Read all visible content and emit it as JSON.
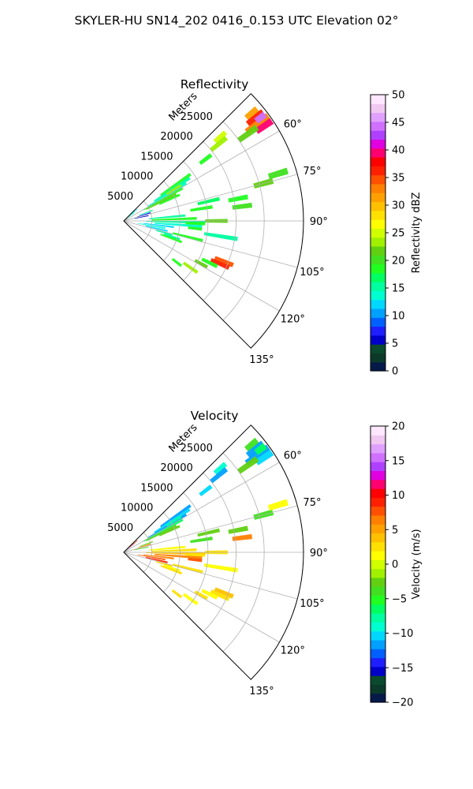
{
  "figure": {
    "suptitle": "SKYLER-HU  SN14_202  0416_0.153 UTC Elevation 02°"
  },
  "chart_data": [
    {
      "type": "heatmap",
      "projection": "polar-sector",
      "title": "Reflectivity",
      "range_label": "Meters",
      "range_ticks": [
        5000,
        10000,
        15000,
        20000,
        25000
      ],
      "range_tick_labels": [
        "5000",
        "10000",
        "15000",
        "20000",
        "25000"
      ],
      "rmax": 32000,
      "azimuth_range": [
        45,
        135
      ],
      "azimuth_ticks": [
        60,
        75,
        90,
        105,
        120,
        135
      ],
      "azimuth_tick_labels": [
        "60°",
        "75°",
        "90°",
        "105°",
        "120°",
        "135°"
      ],
      "grid": true,
      "colorbar": {
        "label": "Reflectivity dBZ",
        "vmin": 0,
        "vmax": 50,
        "ticks": [
          0,
          5,
          10,
          15,
          20,
          25,
          30,
          35,
          40,
          45,
          50
        ],
        "tick_labels": [
          "0",
          "5",
          "10",
          "15",
          "20",
          "25",
          "30",
          "35",
          "40",
          "45",
          "50"
        ],
        "colors": [
          "#061a4a",
          "#0c3a2a",
          "#0a4a2e",
          "#0000c8",
          "#1e1eff",
          "#0060ff",
          "#00a0ff",
          "#00d8ff",
          "#00ffd0",
          "#00ffa0",
          "#00ff60",
          "#20ff20",
          "#40e020",
          "#60d010",
          "#a0f000",
          "#d0ff00",
          "#ffff00",
          "#ffe000",
          "#ffc000",
          "#ffa000",
          "#ff8000",
          "#ff5000",
          "#ff2000",
          "#ff0000",
          "#ff0070",
          "#e000e0",
          "#b040ff",
          "#d070ff",
          "#e0a0ff",
          "#f0c8f0",
          "#ffe8ff"
        ]
      },
      "cells": [
        {
          "az": 47,
          "r": [
            0,
            2600
          ],
          "v": 14
        },
        {
          "az": 49,
          "r": [
            0,
            3200
          ],
          "v": 12
        },
        {
          "az": 52,
          "r": [
            200,
            2400
          ],
          "v": 16
        },
        {
          "az": 50,
          "r": [
            28500,
            31000
          ],
          "v": 31
        },
        {
          "az": 52,
          "r": [
            28000,
            31500
          ],
          "v": 36
        },
        {
          "az": 54,
          "r": [
            27000,
            31800
          ],
          "v": 33
        },
        {
          "az": 56,
          "r": [
            28500,
            31800
          ],
          "v": 40
        },
        {
          "az": 53,
          "r": [
            29500,
            31500
          ],
          "v": 44
        },
        {
          "az": 55,
          "r": [
            25000,
            29000
          ],
          "v": 21
        },
        {
          "az": 49,
          "r": [
            21500,
            24000
          ],
          "v": 25
        },
        {
          "az": 51,
          "r": [
            20000,
            23500
          ],
          "v": 23
        },
        {
          "az": 53,
          "r": [
            17000,
            19500
          ],
          "v": 19
        },
        {
          "az": 55,
          "r": [
            8000,
            14500
          ],
          "v": 19
        },
        {
          "az": 57,
          "r": [
            6500,
            14000
          ],
          "v": 16
        },
        {
          "az": 59,
          "r": [
            5000,
            13000
          ],
          "v": 14
        },
        {
          "az": 61,
          "r": [
            4000,
            12000
          ],
          "v": 18
        },
        {
          "az": 63,
          "r": [
            4500,
            10500
          ],
          "v": 22
        },
        {
          "az": 65,
          "r": [
            7000,
            11000
          ],
          "v": 19
        },
        {
          "az": 58,
          "r": [
            9000,
            12000
          ],
          "v": 24
        },
        {
          "az": 70,
          "r": [
            3000,
            5500
          ],
          "v": 16
        },
        {
          "az": 73,
          "r": [
            2500,
            5000
          ],
          "v": 8
        },
        {
          "az": 76,
          "r": [
            500,
            2500
          ],
          "v": 11
        },
        {
          "az": 78,
          "r": [
            2000,
            4500
          ],
          "v": 5
        },
        {
          "az": 77,
          "r": [
            13500,
            17500
          ],
          "v": 17
        },
        {
          "az": 81,
          "r": [
            12000,
            16000
          ],
          "v": 19
        },
        {
          "az": 79,
          "r": [
            19000,
            22500
          ],
          "v": 18
        },
        {
          "az": 83,
          "r": [
            19500,
            23000
          ],
          "v": 20
        },
        {
          "az": 75,
          "r": [
            24000,
            27500
          ],
          "v": 21
        },
        {
          "az": 73,
          "r": [
            27000,
            30500
          ],
          "v": 20
        },
        {
          "az": 85,
          "r": [
            4500,
            11000
          ],
          "v": 16
        },
        {
          "az": 88,
          "r": [
            5000,
            13000
          ],
          "v": 18
        },
        {
          "az": 91,
          "r": [
            4000,
            14500
          ],
          "v": 15
        },
        {
          "az": 94,
          "r": [
            5500,
            14000
          ],
          "v": 13
        },
        {
          "az": 97,
          "r": [
            3500,
            9000
          ],
          "v": 12
        },
        {
          "az": 100,
          "r": [
            2500,
            7500
          ],
          "v": 14
        },
        {
          "az": 103,
          "r": [
            4000,
            8000
          ],
          "v": 12
        },
        {
          "az": 90,
          "r": [
            14500,
            18500
          ],
          "v": 21
        },
        {
          "az": 92,
          "r": [
            11000,
            14500
          ],
          "v": 19
        },
        {
          "az": 96,
          "r": [
            11500,
            14000
          ],
          "v": 18
        },
        {
          "az": 99,
          "r": [
            14500,
            20500
          ],
          "v": 16
        },
        {
          "az": 104,
          "r": [
            9000,
            14500
          ],
          "v": 18
        },
        {
          "az": 106,
          "r": [
            6000,
            9000
          ],
          "v": 16
        },
        {
          "az": 108,
          "r": [
            7500,
            10500
          ],
          "v": 15
        },
        {
          "az": 110,
          "r": [
            7000,
            11000
          ],
          "v": 19
        },
        {
          "az": 112,
          "r": [
            17500,
            21000
          ],
          "v": 34
        },
        {
          "az": 114,
          "r": [
            17000,
            20500
          ],
          "v": 36
        },
        {
          "az": 116,
          "r": [
            15500,
            18500
          ],
          "v": 18
        },
        {
          "az": 119,
          "r": [
            14500,
            17000
          ],
          "v": 21
        },
        {
          "az": 125,
          "r": [
            13000,
            16000
          ],
          "v": 24
        },
        {
          "az": 128,
          "r": [
            11000,
            13000
          ],
          "v": 18
        }
      ]
    },
    {
      "type": "heatmap",
      "projection": "polar-sector",
      "title": "Velocity",
      "range_label": "Meters",
      "range_ticks": [
        5000,
        10000,
        15000,
        20000,
        25000
      ],
      "range_tick_labels": [
        "5000",
        "10000",
        "15000",
        "20000",
        "25000"
      ],
      "rmax": 32000,
      "azimuth_range": [
        45,
        135
      ],
      "azimuth_ticks": [
        60,
        75,
        90,
        105,
        120,
        135
      ],
      "azimuth_tick_labels": [
        "60°",
        "75°",
        "90°",
        "105°",
        "120°",
        "135°"
      ],
      "grid": true,
      "colorbar": {
        "label": "Velocity (m/s)",
        "vmin": -20,
        "vmax": 20,
        "ticks": [
          -20,
          -15,
          -10,
          -5,
          0,
          5,
          10,
          15,
          20
        ],
        "tick_labels": [
          "−20",
          "−15",
          "−10",
          "−5",
          "0",
          "5",
          "10",
          "15",
          "20"
        ],
        "colors": [
          "#061a4a",
          "#0c3a2a",
          "#0a4a2e",
          "#0000c8",
          "#1e1eff",
          "#0060ff",
          "#00a0ff",
          "#00d8ff",
          "#00ffd0",
          "#00ffa0",
          "#00ff60",
          "#20ff20",
          "#40e020",
          "#60d010",
          "#a0f000",
          "#d0ff00",
          "#ffff00",
          "#ffe000",
          "#ffc000",
          "#ffa000",
          "#ff8000",
          "#ff5000",
          "#ff2000",
          "#ff0000",
          "#ff0070",
          "#e000e0",
          "#b040ff",
          "#d070ff",
          "#e0a0ff",
          "#f0c8f0",
          "#ffe8ff"
        ]
      },
      "cells": [
        {
          "az": 47,
          "r": [
            0,
            2600
          ],
          "v": -2
        },
        {
          "az": 49,
          "r": [
            0,
            3200
          ],
          "v": 9
        },
        {
          "az": 52,
          "r": [
            200,
            2400
          ],
          "v": 16
        },
        {
          "az": 50,
          "r": [
            28500,
            31000
          ],
          "v": -4
        },
        {
          "az": 52,
          "r": [
            28000,
            31500
          ],
          "v": -11
        },
        {
          "az": 54,
          "r": [
            27000,
            31800
          ],
          "v": -12
        },
        {
          "az": 56,
          "r": [
            28500,
            31800
          ],
          "v": -10
        },
        {
          "az": 53,
          "r": [
            29500,
            31500
          ],
          "v": -6
        },
        {
          "az": 55,
          "r": [
            25000,
            29000
          ],
          "v": -3
        },
        {
          "az": 49,
          "r": [
            21500,
            24000
          ],
          "v": -9
        },
        {
          "az": 51,
          "r": [
            20000,
            23500
          ],
          "v": -11
        },
        {
          "az": 53,
          "r": [
            17000,
            19500
          ],
          "v": -10
        },
        {
          "az": 55,
          "r": [
            8000,
            14500
          ],
          "v": -11
        },
        {
          "az": 57,
          "r": [
            6500,
            14000
          ],
          "v": -10
        },
        {
          "az": 59,
          "r": [
            5000,
            13000
          ],
          "v": -12
        },
        {
          "az": 61,
          "r": [
            4000,
            12000
          ],
          "v": -6
        },
        {
          "az": 63,
          "r": [
            4500,
            10500
          ],
          "v": -2
        },
        {
          "az": 65,
          "r": [
            7000,
            11000
          ],
          "v": -3
        },
        {
          "az": 58,
          "r": [
            9000,
            12000
          ],
          "v": -8
        },
        {
          "az": 70,
          "r": [
            3000,
            5500
          ],
          "v": -3
        },
        {
          "az": 73,
          "r": [
            2500,
            5000
          ],
          "v": 6
        },
        {
          "az": 76,
          "r": [
            500,
            2500
          ],
          "v": -1
        },
        {
          "az": 78,
          "r": [
            2000,
            4500
          ],
          "v": -4
        },
        {
          "az": 77,
          "r": [
            13500,
            17500
          ],
          "v": -3
        },
        {
          "az": 81,
          "r": [
            12000,
            16000
          ],
          "v": -4
        },
        {
          "az": 79,
          "r": [
            19000,
            22500
          ],
          "v": -2
        },
        {
          "az": 83,
          "r": [
            19500,
            23000
          ],
          "v": 7
        },
        {
          "az": 75,
          "r": [
            24000,
            27500
          ],
          "v": -4
        },
        {
          "az": 73,
          "r": [
            27000,
            30500
          ],
          "v": 1
        },
        {
          "az": 85,
          "r": [
            4500,
            11000
          ],
          "v": 1
        },
        {
          "az": 88,
          "r": [
            5000,
            13000
          ],
          "v": 3
        },
        {
          "az": 91,
          "r": [
            4000,
            14500
          ],
          "v": 4
        },
        {
          "az": 94,
          "r": [
            5500,
            14000
          ],
          "v": 6
        },
        {
          "az": 97,
          "r": [
            3500,
            9000
          ],
          "v": 7
        },
        {
          "az": 100,
          "r": [
            2500,
            7500
          ],
          "v": 8
        },
        {
          "az": 103,
          "r": [
            4000,
            8000
          ],
          "v": 9
        },
        {
          "az": 90,
          "r": [
            14500,
            18500
          ],
          "v": 2
        },
        {
          "az": 92,
          "r": [
            11000,
            14500
          ],
          "v": 3
        },
        {
          "az": 96,
          "r": [
            11500,
            14000
          ],
          "v": 8
        },
        {
          "az": 99,
          "r": [
            14500,
            20500
          ],
          "v": 1
        },
        {
          "az": 104,
          "r": [
            9000,
            14500
          ],
          "v": 2
        },
        {
          "az": 106,
          "r": [
            6000,
            9000
          ],
          "v": 3
        },
        {
          "az": 108,
          "r": [
            7500,
            10500
          ],
          "v": 1
        },
        {
          "az": 110,
          "r": [
            7000,
            11000
          ],
          "v": 2
        },
        {
          "az": 112,
          "r": [
            17500,
            21000
          ],
          "v": 4
        },
        {
          "az": 114,
          "r": [
            17000,
            20500
          ],
          "v": 3
        },
        {
          "az": 116,
          "r": [
            15500,
            18500
          ],
          "v": 1
        },
        {
          "az": 119,
          "r": [
            14500,
            17000
          ],
          "v": 2
        },
        {
          "az": 125,
          "r": [
            13000,
            16000
          ],
          "v": 1
        },
        {
          "az": 128,
          "r": [
            11000,
            13000
          ],
          "v": 2
        }
      ]
    }
  ]
}
